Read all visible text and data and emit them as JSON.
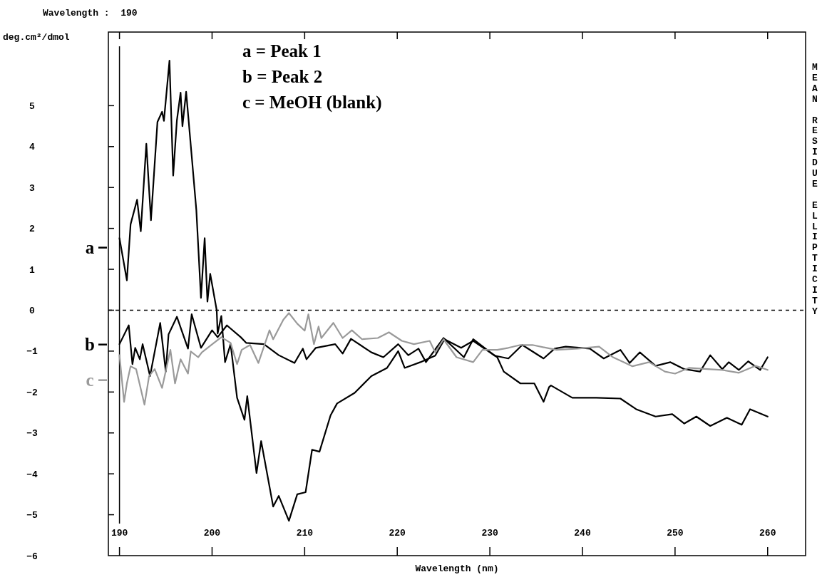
{
  "chart_data": {
    "type": "line",
    "title": "Wavelength :  190",
    "xlabel": "Wavelength (nm)",
    "ylabel": "deg.cm²/dmol",
    "y2label": "MEAN RESIDUE ELLIPTICITY",
    "annotations": [
      "a = Peak 1",
      "b = Peak 2",
      "c = MeOH (blank)"
    ],
    "xlim": [
      188.8,
      264.1
    ],
    "xticks": [
      190,
      200,
      210,
      220,
      230,
      240,
      250,
      260
    ],
    "ylim": [
      -6,
      6.8
    ],
    "yticks": [
      -6,
      -5,
      -4,
      -3,
      -2,
      -1,
      0,
      1,
      2,
      3,
      4,
      5
    ],
    "grid": false,
    "legend": "left",
    "marker": "none",
    "line_style": "solid",
    "ref_lines": [
      {
        "axis": "y",
        "value": 0,
        "line_style": "dashed",
        "color": "#000000"
      },
      {
        "axis": "x",
        "value": 190,
        "line_style": "solid",
        "color": "#000000"
      }
    ],
    "series": [
      {
        "name": "a",
        "color": "#000000",
        "x": [
          190,
          190.8,
          191.2,
          191.9,
          192.3,
          192.9,
          193.4,
          194.1,
          194.6,
          194.8,
          195.4,
          195.8,
          196.2,
          196.6,
          196.8,
          197.2,
          197.8,
          198.3,
          198.8,
          199.2,
          199.5,
          199.8,
          200.5,
          200.6,
          201.0,
          201.4,
          202.0,
          202.7,
          203.5,
          203.8,
          204.8,
          205.3,
          206.6,
          207.2,
          208.3,
          209.2,
          210.1,
          210.8,
          211.6,
          212.8,
          213.5,
          215.4,
          217.2,
          218.9,
          220.1,
          220.8,
          222.5,
          224.1,
          225.1,
          226.9,
          228.2,
          230.8,
          231.5,
          233.3,
          234.8,
          235.8,
          236.4,
          236.6,
          238.9,
          241.5,
          244.1,
          245.8,
          247.9,
          249.7,
          251.0,
          252.3,
          253.8,
          255.6,
          257.2,
          258.1,
          260
        ],
        "values": [
          1.76,
          0.73,
          2.1,
          2.7,
          1.93,
          4.07,
          2.2,
          4.6,
          4.85,
          4.63,
          6.1,
          3.29,
          4.64,
          5.32,
          4.5,
          5.34,
          3.77,
          2.45,
          0.3,
          1.76,
          0.21,
          0.89,
          0.0,
          -0.57,
          -0.14,
          -1.27,
          -0.83,
          -2.14,
          -2.68,
          -2.1,
          -3.98,
          -3.2,
          -4.8,
          -4.54,
          -5.15,
          -4.5,
          -4.45,
          -3.41,
          -3.46,
          -2.57,
          -2.28,
          -2.02,
          -1.61,
          -1.41,
          -1.0,
          -1.41,
          -1.27,
          -1.11,
          -0.71,
          -0.92,
          -0.75,
          -1.15,
          -1.5,
          -1.79,
          -1.79,
          -2.24,
          -1.88,
          -1.84,
          -2.14,
          -2.14,
          -2.16,
          -2.42,
          -2.6,
          -2.54,
          -2.77,
          -2.6,
          -2.83,
          -2.63,
          -2.8,
          -2.42,
          -2.6
        ]
      },
      {
        "name": "b",
        "color": "#000000",
        "x": [
          190,
          191.0,
          191.4,
          191.7,
          192.2,
          192.5,
          193.3,
          194.4,
          195.0,
          195.3,
          196.2,
          197.4,
          197.8,
          198.8,
          200.0,
          200.6,
          201.6,
          203.1,
          203.7,
          205.6,
          207.2,
          208.9,
          209.8,
          210.2,
          211.2,
          213.3,
          214.1,
          215.0,
          217.2,
          218.5,
          220.1,
          221.2,
          222.3,
          223.1,
          225.0,
          227.2,
          228.2,
          230.5,
          232.0,
          233.5,
          235.8,
          237.0,
          238.2,
          240.8,
          242.3,
          244.1,
          245.1,
          246.2,
          247.9,
          249.5,
          251.0,
          252.7,
          253.8,
          255.1,
          255.8,
          256.9,
          257.9,
          259.2,
          260
        ],
        "values": [
          -0.83,
          -0.37,
          -1.32,
          -0.92,
          -1.2,
          -0.83,
          -1.61,
          -0.31,
          -1.5,
          -0.59,
          -0.16,
          -0.94,
          -0.1,
          -0.92,
          -0.49,
          -0.66,
          -0.37,
          -0.66,
          -0.8,
          -0.83,
          -1.1,
          -1.29,
          -0.94,
          -1.2,
          -0.92,
          -0.83,
          -1.06,
          -0.7,
          -1.03,
          -1.15,
          -0.83,
          -1.1,
          -0.94,
          -1.27,
          -0.68,
          -1.15,
          -0.71,
          -1.11,
          -1.18,
          -0.85,
          -1.18,
          -0.94,
          -0.89,
          -0.94,
          -1.18,
          -0.97,
          -1.29,
          -1.03,
          -1.36,
          -1.27,
          -1.44,
          -1.5,
          -1.1,
          -1.44,
          -1.27,
          -1.46,
          -1.25,
          -1.46,
          -1.15
        ]
      },
      {
        "name": "c",
        "color": "#9a9a9a",
        "x": [
          190,
          190.5,
          190.8,
          191.2,
          191.8,
          192.7,
          193.2,
          193.8,
          194.6,
          195.5,
          196.0,
          196.6,
          197.4,
          197.7,
          198.5,
          198.9,
          200.2,
          201.0,
          202.0,
          202.7,
          203.2,
          204.1,
          205.0,
          206.2,
          206.6,
          207.7,
          208.3,
          209.2,
          210.0,
          210.4,
          211.0,
          211.5,
          211.8,
          213.1,
          214.1,
          215.1,
          216.2,
          217.9,
          219.1,
          220.5,
          221.8,
          223.5,
          224.1,
          225.0,
          226.4,
          228.2,
          229.2,
          230.8,
          232.0,
          233.3,
          234.6,
          237.2,
          239.5,
          241.8,
          243.3,
          245.4,
          247.2,
          248.9,
          250.0,
          251.5,
          253.5,
          255.1,
          256.9,
          258.7,
          260
        ],
        "values": [
          -1.1,
          -2.24,
          -1.79,
          -1.37,
          -1.44,
          -2.31,
          -1.61,
          -1.44,
          -1.9,
          -0.97,
          -1.79,
          -1.2,
          -1.55,
          -1.01,
          -1.15,
          -1.03,
          -0.8,
          -0.66,
          -0.8,
          -1.32,
          -0.97,
          -0.85,
          -1.29,
          -0.49,
          -0.71,
          -0.23,
          -0.07,
          -0.33,
          -0.5,
          -0.1,
          -0.83,
          -0.4,
          -0.68,
          -0.31,
          -0.68,
          -0.49,
          -0.71,
          -0.68,
          -0.54,
          -0.75,
          -0.83,
          -0.75,
          -1.03,
          -0.71,
          -1.15,
          -1.27,
          -0.97,
          -0.97,
          -0.92,
          -0.85,
          -0.85,
          -0.97,
          -0.94,
          -0.89,
          -1.15,
          -1.37,
          -1.27,
          -1.5,
          -1.55,
          -1.41,
          -1.44,
          -1.46,
          -1.53,
          -1.36,
          -1.46
        ]
      }
    ]
  }
}
